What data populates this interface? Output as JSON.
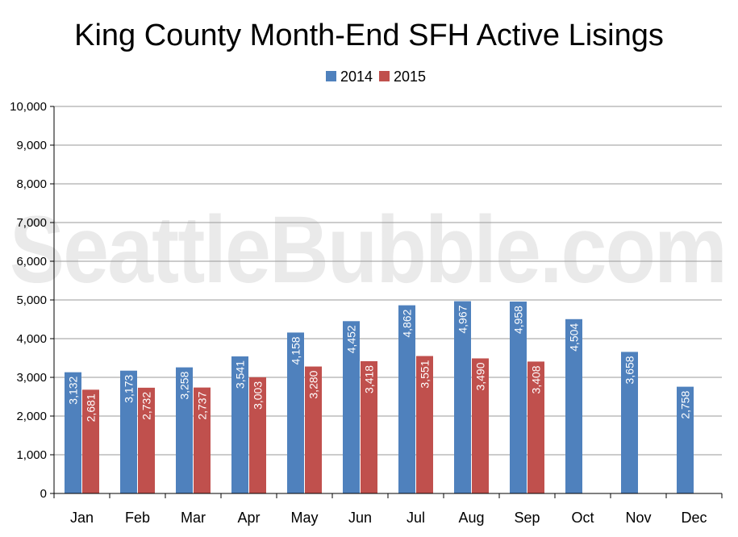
{
  "chart_data": {
    "type": "bar",
    "title": "King County Month-End SFH Active Lisings",
    "watermark": "SeattleBubble.com",
    "categories": [
      "Jan",
      "Feb",
      "Mar",
      "Apr",
      "May",
      "Jun",
      "Jul",
      "Aug",
      "Sep",
      "Oct",
      "Nov",
      "Dec"
    ],
    "series": [
      {
        "name": "2014",
        "color": "#4f81bd",
        "values": [
          3132,
          3173,
          3258,
          3541,
          4158,
          4452,
          4862,
          4967,
          4958,
          4504,
          3658,
          2758
        ],
        "labels": [
          "3,132",
          "3,173",
          "3,258",
          "3,541",
          "4,158",
          "4,452",
          "4,862",
          "4,967",
          "4,958",
          "4,504",
          "3,658",
          "2,758"
        ]
      },
      {
        "name": "2015",
        "color": "#c0504d",
        "values": [
          2681,
          2732,
          2737,
          3003,
          3280,
          3418,
          3551,
          3490,
          3408,
          null,
          null,
          null
        ],
        "labels": [
          "2,681",
          "2,732",
          "2,737",
          "3,003",
          "3,280",
          "3,418",
          "3,551",
          "3,490",
          "3,408",
          null,
          null,
          null
        ]
      }
    ],
    "ylim": [
      0,
      10000
    ],
    "yticks": [
      0,
      1000,
      2000,
      3000,
      4000,
      5000,
      6000,
      7000,
      8000,
      9000,
      10000
    ],
    "ytick_labels": [
      "0",
      "1,000",
      "2,000",
      "3,000",
      "4,000",
      "5,000",
      "6,000",
      "7,000",
      "8,000",
      "9,000",
      "10,000"
    ],
    "grid": true,
    "legend_position": "top-center"
  }
}
